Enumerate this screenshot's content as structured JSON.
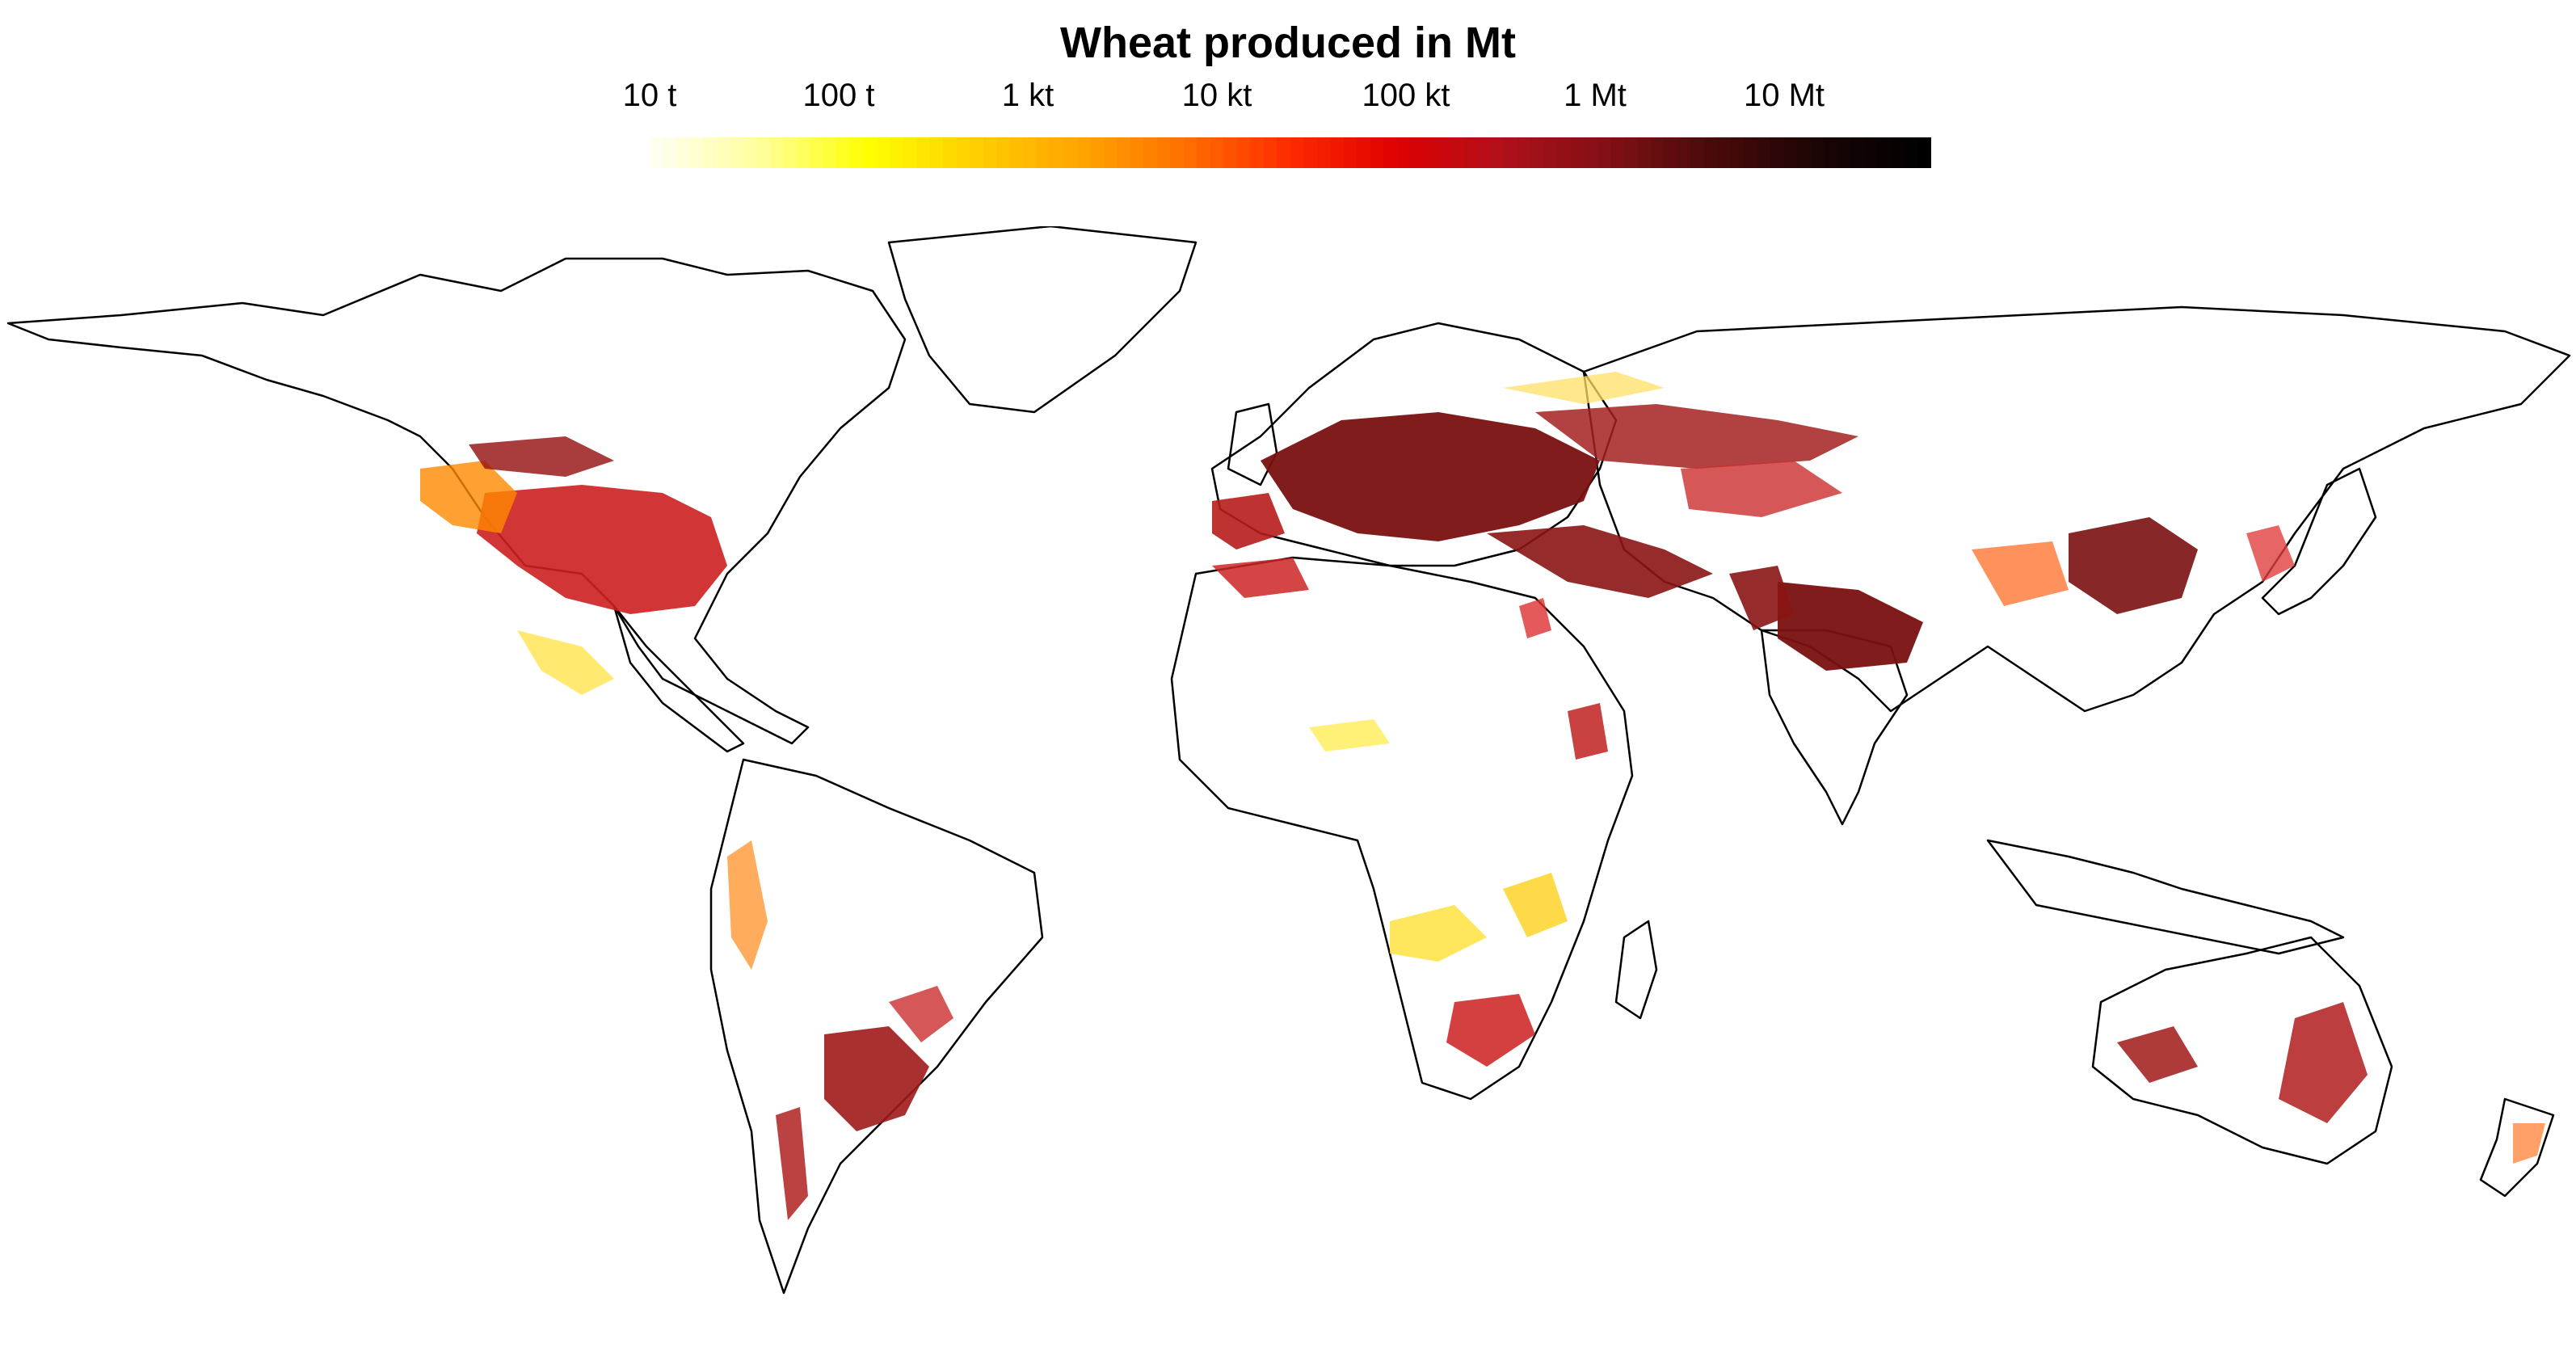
{
  "title": "Wheat produced in Mt",
  "legend": {
    "scale": "log10",
    "unit_ticks": [
      "10 t",
      "100 t",
      "1 kt",
      "10 kt",
      "100 kt",
      "1 Mt",
      "10 Mt"
    ],
    "gradient": [
      "#fffff0",
      "#ffff99",
      "#ffff00",
      "#ffd000",
      "#ffa500",
      "#ff7000",
      "#ff2a00",
      "#e00000",
      "#b0101a",
      "#801015",
      "#4a0a0a",
      "#1a0505",
      "#000000"
    ]
  },
  "map_colors": {
    "outline": "#000000",
    "low": "#ffee33",
    "mid": "#ff8800",
    "high": "#cc1f1f",
    "very_high": "#7a1010",
    "land": "#ffffff"
  }
}
